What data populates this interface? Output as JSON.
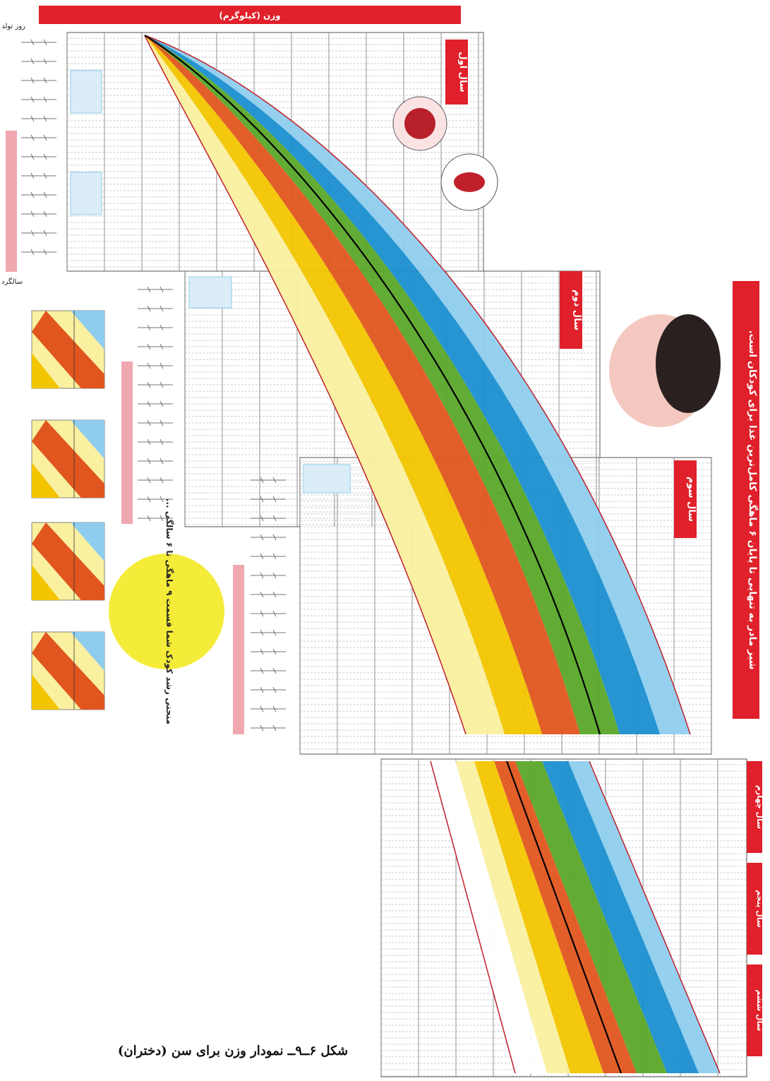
{
  "chart_data": {
    "type": "area",
    "title": "",
    "header_band_text": "وزن (کیلوگرم)",
    "side_banner_text": "شیر مادر به تنهایی تا پایان ۶ ماهگی کامل‌ترین غذا برای کودکان است.",
    "panel_labels": [
      "سال اول",
      "سال دوم",
      "سال سوم",
      "سال چهارم",
      "سال پنجم",
      "سال ششم"
    ],
    "row_header_top": "روز تولد",
    "row_header_bottom": "سالگرد تولد",
    "yellow_note": "منحنی رشد کودک شما قسمت ۹ ماهگی تا ۶ سالگی ...",
    "colors": {
      "blue": "#1a8fd0",
      "light_blue": "#8fcdee",
      "green": "#5aa82a",
      "orange": "#e0561e",
      "yellow": "#f2c500",
      "light_yellow": "#faf0a0",
      "median": "#000000",
      "limit": "#c0202a",
      "banner": "#e0202a"
    }
  },
  "caption": "شکل ۶ــ۹ــ نمودار وزن برای سن (دختران)"
}
